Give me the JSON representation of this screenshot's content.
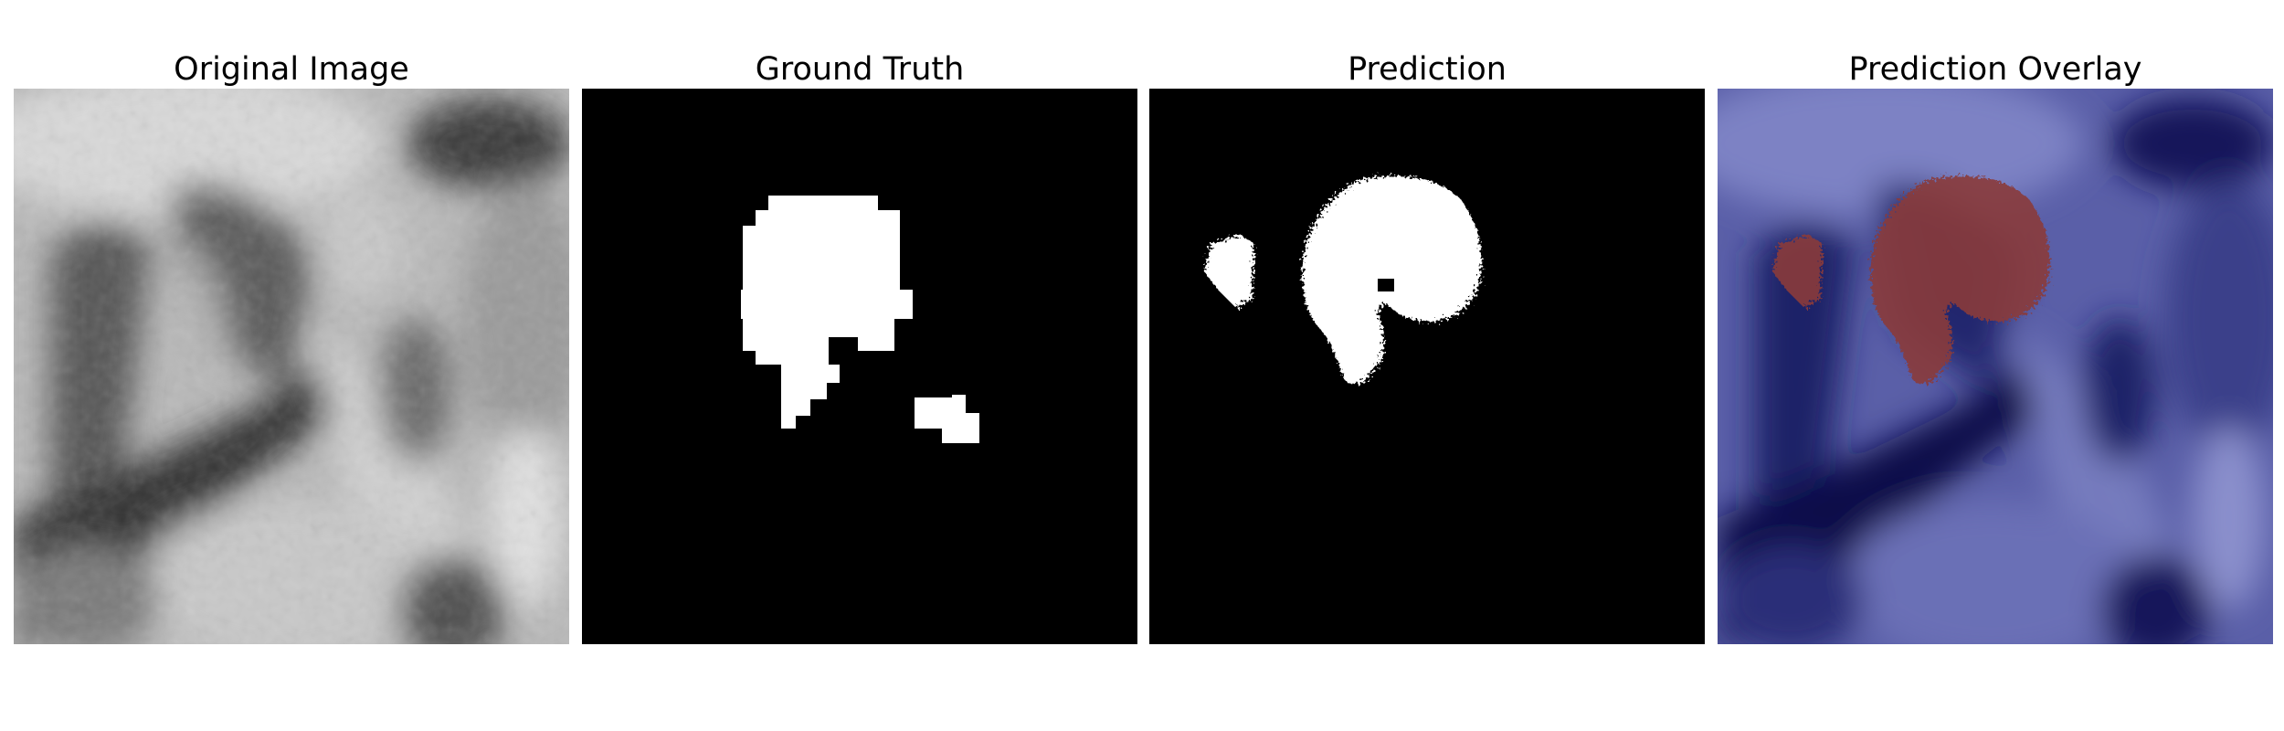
{
  "figure": {
    "panels": [
      {
        "title": "Original Image"
      },
      {
        "title": "Ground Truth"
      },
      {
        "title": "Prediction"
      },
      {
        "title": "Prediction Overlay"
      }
    ],
    "colors": {
      "background": "#ffffff",
      "mask_background": "#000000",
      "mask_foreground": "#ffffff",
      "overlay_base": "#5a5fa8",
      "overlay_dark": "#0d0f4a",
      "overlay_region": "#8a3a3a"
    }
  }
}
